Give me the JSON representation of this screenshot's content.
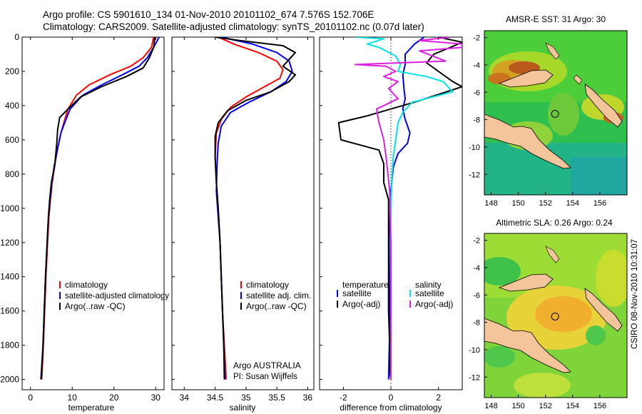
{
  "header": {
    "line1": "Argo profile: CS 5901610_134 01-Nov-2010 20101102_674 7.576S 152.706E",
    "line2": "Climatology: CARS2009. Satellite-adjusted climatology: synTS_20101102.nc (0.07d later)"
  },
  "colors": {
    "climatology": "#ff0000",
    "satellite": "#0000ff",
    "argo": "#000000",
    "sal_satellite": "#00e5e5",
    "sal_argo": "#e020e0",
    "land": "#f4c49a"
  },
  "chart_data": [
    {
      "type": "line",
      "id": "temperature",
      "xlabel": "temperature",
      "ylabel": "",
      "xlim": [
        -2,
        32
      ],
      "ylim": [
        2060,
        0
      ],
      "xticks": [
        0,
        10,
        20,
        30
      ],
      "yticks": [
        0,
        200,
        400,
        600,
        800,
        1000,
        1200,
        1400,
        1600,
        1800,
        2000
      ],
      "legend": [
        "climatology",
        "satellite-adjusted climatology",
        "Argo(..raw -QC)"
      ],
      "series": [
        {
          "name": "climatology",
          "color": "#ff0000",
          "points": [
            [
              29.5,
              0
            ],
            [
              29,
              60
            ],
            [
              27,
              120
            ],
            [
              24,
              170
            ],
            [
              19,
              220
            ],
            [
              14,
              280
            ],
            [
              11,
              340
            ],
            [
              9,
              420
            ],
            [
              8,
              500
            ],
            [
              7.3,
              560
            ],
            [
              6.5,
              650
            ],
            [
              5.8,
              750
            ],
            [
              5.2,
              850
            ],
            [
              4.8,
              950
            ],
            [
              4.4,
              1050
            ],
            [
              4.1,
              1200
            ],
            [
              3.7,
              1400
            ],
            [
              3.4,
              1600
            ],
            [
              3.1,
              1800
            ],
            [
              2.7,
              2000
            ]
          ]
        },
        {
          "name": "satellite-adjusted climatology",
          "color": "#0000ff",
          "points": [
            [
              30.8,
              0
            ],
            [
              29.5,
              60
            ],
            [
              28,
              120
            ],
            [
              26,
              170
            ],
            [
              22,
              220
            ],
            [
              17,
              280
            ],
            [
              12.5,
              340
            ],
            [
              9.5,
              420
            ],
            [
              8.2,
              500
            ],
            [
              7.3,
              560
            ],
            [
              6.5,
              650
            ],
            [
              5.7,
              750
            ],
            [
              5.1,
              850
            ],
            [
              4.7,
              950
            ],
            [
              4.3,
              1050
            ],
            [
              4,
              1200
            ],
            [
              3.6,
              1400
            ],
            [
              3.3,
              1600
            ],
            [
              3,
              1800
            ],
            [
              2.5,
              2000
            ]
          ]
        },
        {
          "name": "Argo(..raw -QC)",
          "color": "#000000",
          "points": [
            [
              29.8,
              0
            ],
            [
              29.5,
              60
            ],
            [
              28.5,
              120
            ],
            [
              27,
              180
            ],
            [
              23,
              230
            ],
            [
              17,
              290
            ],
            [
              12,
              350
            ],
            [
              9,
              420
            ],
            [
              7,
              470
            ],
            [
              6.5,
              540
            ],
            [
              6.3,
              620
            ],
            [
              5.8,
              750
            ],
            [
              5,
              850
            ],
            [
              4.6,
              950
            ],
            [
              4.3,
              1050
            ],
            [
              4,
              1200
            ],
            [
              3.6,
              1400
            ],
            [
              3.3,
              1600
            ],
            [
              3,
              1800
            ],
            [
              2.6,
              2000
            ]
          ]
        }
      ]
    },
    {
      "type": "line",
      "id": "salinity",
      "xlabel": "salinity",
      "xlim": [
        33.8,
        36.1
      ],
      "ylim": [
        2060,
        0
      ],
      "xticks": [
        34,
        34.5,
        35,
        35.5,
        36
      ],
      "legend": [
        "climatology",
        "satellite adj. clim.",
        "Argo(..raw -QC)"
      ],
      "series": [
        {
          "name": "climatology",
          "color": "#ff0000",
          "points": [
            [
              34.55,
              0
            ],
            [
              34.8,
              40
            ],
            [
              35.2,
              90
            ],
            [
              35.5,
              140
            ],
            [
              35.6,
              190
            ],
            [
              35.55,
              240
            ],
            [
              35.3,
              290
            ],
            [
              35,
              350
            ],
            [
              34.75,
              410
            ],
            [
              34.6,
              480
            ],
            [
              34.52,
              560
            ],
            [
              34.5,
              700
            ],
            [
              34.52,
              850
            ],
            [
              34.55,
              1000
            ],
            [
              34.58,
              1200
            ],
            [
              34.6,
              1400
            ],
            [
              34.62,
              1600
            ],
            [
              34.65,
              1800
            ],
            [
              34.68,
              2000
            ]
          ]
        },
        {
          "name": "satellite adj. clim.",
          "color": "#0000ff",
          "points": [
            [
              34.6,
              0
            ],
            [
              35.1,
              40
            ],
            [
              35.5,
              90
            ],
            [
              35.7,
              140
            ],
            [
              35.75,
              200
            ],
            [
              35.65,
              260
            ],
            [
              35.4,
              320
            ],
            [
              35.05,
              380
            ],
            [
              34.75,
              440
            ],
            [
              34.6,
              520
            ],
            [
              34.55,
              620
            ],
            [
              34.53,
              750
            ],
            [
              34.52,
              900
            ],
            [
              34.55,
              1050
            ],
            [
              34.58,
              1200
            ],
            [
              34.6,
              1400
            ],
            [
              34.62,
              1600
            ],
            [
              34.64,
              1800
            ],
            [
              34.66,
              2000
            ]
          ]
        },
        {
          "name": "Argo(..raw -QC)",
          "color": "#000000",
          "points": [
            [
              34.5,
              0
            ],
            [
              34.9,
              20
            ],
            [
              35.6,
              50
            ],
            [
              35.8,
              90
            ],
            [
              35.6,
              170
            ],
            [
              35.8,
              220
            ],
            [
              35.7,
              260
            ],
            [
              35.4,
              320
            ],
            [
              35,
              370
            ],
            [
              34.7,
              430
            ],
            [
              34.55,
              500
            ],
            [
              34.5,
              580
            ],
            [
              34.5,
              700
            ],
            [
              34.52,
              850
            ],
            [
              34.55,
              1000
            ],
            [
              34.58,
              1200
            ],
            [
              34.6,
              1400
            ],
            [
              34.62,
              1600
            ],
            [
              34.64,
              1800
            ],
            [
              34.65,
              2000
            ]
          ]
        }
      ]
    },
    {
      "type": "line",
      "id": "difference",
      "xlabel": "difference from climatology",
      "xlim": [
        -3,
        3
      ],
      "ylim": [
        2060,
        0
      ],
      "xticks": [
        -2,
        0,
        2
      ],
      "zero_line": true,
      "legend_groups": [
        {
          "title": "temperature",
          "items": [
            "satellite",
            "Argo(-adj)"
          ]
        },
        {
          "title": "salinity",
          "items": [
            "satellite",
            "Argo(-adj)"
          ]
        }
      ],
      "series": [
        {
          "name": "temperature satellite",
          "color": "#0000ff",
          "points": [
            [
              1.4,
              0
            ],
            [
              1,
              40
            ],
            [
              0.6,
              100
            ],
            [
              0.6,
              160
            ],
            [
              0.5,
              220
            ],
            [
              0.55,
              300
            ],
            [
              0.6,
              360
            ],
            [
              0.5,
              420
            ],
            [
              0.6,
              480
            ],
            [
              0.8,
              560
            ],
            [
              0.7,
              620
            ],
            [
              0.3,
              680
            ],
            [
              0.1,
              760
            ],
            [
              0,
              900
            ],
            [
              -0.05,
              1100
            ],
            [
              -0.05,
              1400
            ],
            [
              -0.05,
              1700
            ],
            [
              -0.1,
              2000
            ]
          ]
        },
        {
          "name": "temperature Argo(-adj)",
          "color": "#000000",
          "points": [
            [
              2,
              0
            ],
            [
              3,
              30
            ],
            [
              2.5,
              60
            ],
            [
              1.8,
              100
            ],
            [
              1.5,
              150
            ],
            [
              2,
              200
            ],
            [
              2.6,
              260
            ],
            [
              3,
              290
            ],
            [
              1,
              380
            ],
            [
              -1,
              460
            ],
            [
              -2.2,
              500
            ],
            [
              -2.1,
              600
            ],
            [
              -0.5,
              660
            ],
            [
              -0.3,
              740
            ],
            [
              -0.3,
              850
            ],
            [
              -0.1,
              950
            ],
            [
              -0.1,
              1100
            ],
            [
              -0.1,
              1400
            ],
            [
              -0.1,
              1600
            ],
            [
              -0.05,
              1800
            ],
            [
              -0.05,
              1950
            ],
            [
              0,
              2000
            ]
          ]
        },
        {
          "name": "salinity satellite",
          "color": "#00e5e5",
          "points": [
            [
              -1.5,
              0
            ],
            [
              -0.3,
              10
            ],
            [
              -1,
              40
            ],
            [
              -0.5,
              60
            ],
            [
              0.2,
              110
            ],
            [
              0.4,
              160
            ],
            [
              0.3,
              200
            ],
            [
              1.5,
              230
            ],
            [
              2.2,
              260
            ],
            [
              2.6,
              320
            ],
            [
              0.9,
              380
            ],
            [
              0.5,
              440
            ],
            [
              0.3,
              500
            ],
            [
              0.2,
              600
            ],
            [
              0.1,
              700
            ],
            [
              0.05,
              800
            ],
            [
              0,
              1000
            ],
            [
              -0.02,
              1200
            ],
            [
              0,
              1500
            ],
            [
              0,
              1800
            ],
            [
              0,
              2000
            ]
          ]
        },
        {
          "name": "salinity Argo(-adj)",
          "color": "#e020e0",
          "points": [
            [
              2.5,
              0
            ],
            [
              1.2,
              20
            ],
            [
              3,
              40
            ],
            [
              3,
              60
            ],
            [
              1.2,
              80
            ],
            [
              2.3,
              140
            ],
            [
              -1.5,
              160
            ],
            [
              -0.2,
              170
            ],
            [
              0.2,
              200
            ],
            [
              -0.3,
              230
            ],
            [
              0.3,
              260
            ],
            [
              -0.1,
              300
            ],
            [
              0.3,
              360
            ],
            [
              -0.6,
              420
            ],
            [
              -0.5,
              500
            ],
            [
              -0.3,
              600
            ],
            [
              -0.2,
              700
            ],
            [
              -0.05,
              900
            ],
            [
              0,
              1200
            ],
            [
              0,
              1600
            ],
            [
              0,
              2000
            ]
          ]
        }
      ]
    }
  ],
  "credit": {
    "line1": "Argo AUSTRALIA",
    "line2": "PI: Susan Wijffels"
  },
  "maps": [
    {
      "title": "AMSR-E SST: 31 Argo: 30",
      "xticks": [
        "148",
        "150",
        "152",
        "154",
        "156"
      ],
      "yticks": [
        "-2",
        "-4",
        "-6",
        "-8",
        "-10",
        "-12"
      ],
      "marker_lon": 152.706,
      "marker_lat": -7.576
    },
    {
      "title": "Altimetric SLA: 0.26 Argo: 0.24",
      "xticks": [
        "148",
        "150",
        "152",
        "154",
        "156"
      ],
      "yticks": [
        "-2",
        "-4",
        "-6",
        "-8",
        "-10",
        "-12"
      ],
      "marker_lon": 152.706,
      "marker_lat": -7.576
    }
  ],
  "side_stamp": "CSIRO 08-Nov-2010 10:31:07"
}
